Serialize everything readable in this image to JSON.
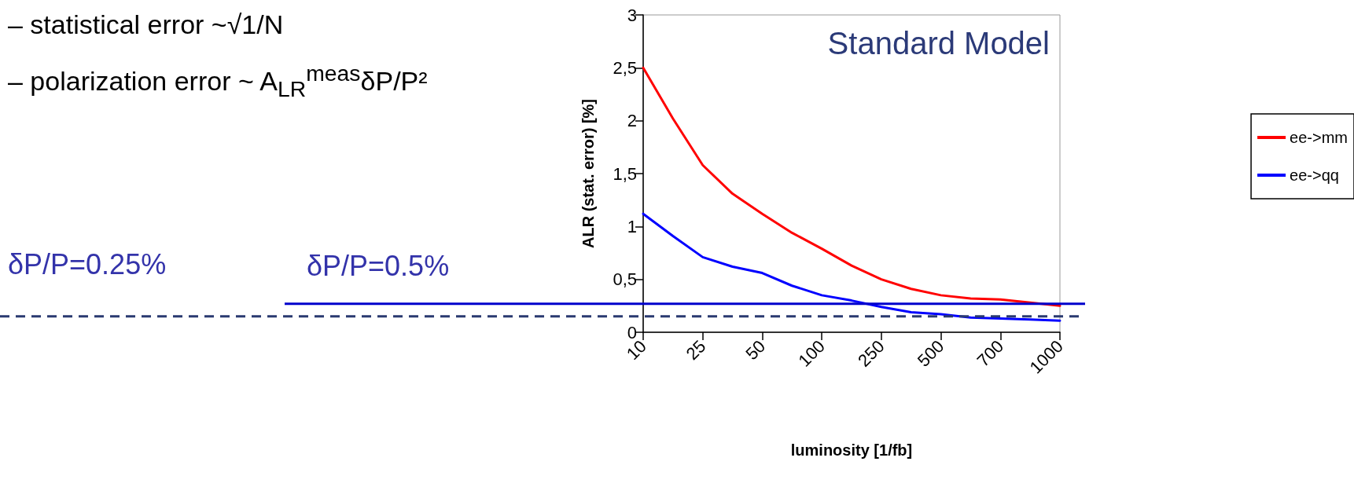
{
  "chart_data": {
    "type": "line",
    "title": "Standard Model",
    "xlabel": "luminosity [1/fb]",
    "ylabel": "ALR (stat. error) [%]",
    "annotations": [
      "– statistical error ~√1/N",
      "– polarization error ~ A$_{LR}$$^{meas}$δP/P²",
      {
        "text": "δP/P=0.5%",
        "y": 0.27
      },
      {
        "text": "δP/P=0.25%",
        "y": 0.15
      }
    ],
    "categories": [
      "10",
      null,
      "25",
      null,
      "50",
      null,
      "100",
      null,
      "250",
      null,
      "500",
      null,
      "700",
      null,
      "1000"
    ],
    "series": [
      {
        "name": "ee->mm",
        "color": "#ff0000",
        "values": [
          2.5,
          2.02,
          1.58,
          1.31,
          1.12,
          0.94,
          0.79,
          0.63,
          0.5,
          0.41,
          0.35,
          0.32,
          0.31,
          0.28,
          0.25
        ]
      },
      {
        "name": "ee->qq",
        "color": "#0000ff",
        "values": [
          1.12,
          0.91,
          0.71,
          0.62,
          0.56,
          0.44,
          0.35,
          0.3,
          0.24,
          0.19,
          0.17,
          0.14,
          0.13,
          0.12,
          0.11
        ]
      }
    ],
    "ylim": [
      0,
      3
    ],
    "yticks": [
      0,
      {
        "value": 0.5,
        "label": "0,5"
      },
      1,
      {
        "value": 1.5,
        "label": "1,5"
      },
      2,
      {
        "value": 2.5,
        "label": "2,5"
      },
      3
    ],
    "ref_lines": [
      {
        "axis": "y",
        "value": 0.27,
        "color": "#0000cc",
        "line_style": "solid"
      },
      {
        "axis": "y",
        "value": 0.15,
        "color": "#2a3a70",
        "line_style": "dashed"
      }
    ],
    "legend": "right",
    "grid": false,
    "marker": "none",
    "line_style": "solid"
  }
}
